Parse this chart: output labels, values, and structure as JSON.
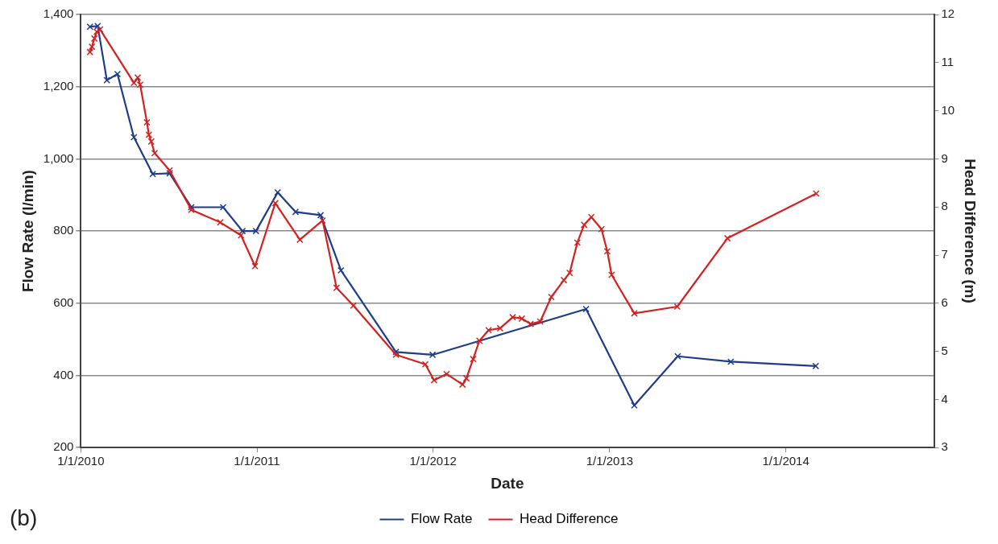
{
  "chart_data": {
    "type": "line",
    "xlabel": "Date",
    "ylabel": "Flow Rate (l/min)",
    "y2label": "Head Difference (m)",
    "annotations": [
      "(b)"
    ],
    "xlim": [
      "2010-01-01",
      "2014-11-04"
    ],
    "xticks": [
      {
        "value": "2010-01-01",
        "label": "1/1/2010"
      },
      {
        "value": "2011-01-01",
        "label": "1/1/2011"
      },
      {
        "value": "2012-01-01",
        "label": "1/1/2012"
      },
      {
        "value": "2013-01-01",
        "label": "1/1/2013"
      },
      {
        "value": "2014-01-01",
        "label": "1/1/2014"
      }
    ],
    "ylim": [
      200,
      1400
    ],
    "yticks": [
      {
        "value": 200,
        "label": "200"
      },
      {
        "value": 400,
        "label": "400"
      },
      {
        "value": 600,
        "label": "600"
      },
      {
        "value": 800,
        "label": "800"
      },
      {
        "value": 1000,
        "label": "1,000"
      },
      {
        "value": 1200,
        "label": "1,200"
      },
      {
        "value": 1400,
        "label": "1,400"
      }
    ],
    "y2lim": [
      3,
      12
    ],
    "y2ticks": [
      3,
      4,
      5,
      6,
      7,
      8,
      9,
      10,
      11,
      12
    ],
    "grid": "y",
    "legend": "bottom",
    "marker": "cross",
    "line_style": "solid",
    "series": [
      {
        "name": "Flow Rate",
        "color": "#1f3c88",
        "x": [
          "2010-01-20",
          "2010-02-05",
          "2010-02-24",
          "2010-03-18",
          "2010-04-21",
          "2010-05-30",
          "2010-07-04",
          "2010-08-18",
          "2010-10-23",
          "2010-12-02",
          "2010-12-30",
          "2011-02-13",
          "2011-03-22",
          "2011-05-13",
          "2011-06-24",
          "2011-10-16",
          "2011-12-31",
          "2012-11-13",
          "2013-02-21",
          "2013-05-22",
          "2013-09-09",
          "2014-03-04"
        ],
        "values": [
          1366,
          1368,
          1218,
          1235,
          1060,
          958,
          960,
          866,
          866,
          800,
          800,
          907,
          853,
          844,
          691,
          465,
          457,
          584,
          317,
          453,
          438,
          426
        ]
      },
      {
        "name": "Head Difference",
        "color": "#d42020",
        "axis": "y2",
        "x": [
          "2010-01-20",
          "2010-01-24",
          "2010-01-29",
          "2010-02-03",
          "2010-02-10",
          "2010-04-21",
          "2010-04-29",
          "2010-05-04",
          "2010-05-18",
          "2010-05-22",
          "2010-05-27",
          "2010-06-03",
          "2010-07-04",
          "2010-08-18",
          "2010-10-17",
          "2010-11-29",
          "2010-12-28",
          "2011-02-08",
          "2011-03-31",
          "2011-05-17",
          "2011-06-15",
          "2011-07-20",
          "2011-10-16",
          "2011-12-16",
          "2012-01-03",
          "2012-01-29",
          "2012-03-02",
          "2012-03-10",
          "2012-03-24",
          "2012-04-06",
          "2012-04-25",
          "2012-05-19",
          "2012-06-14",
          "2012-07-03",
          "2012-07-21",
          "2012-08-10",
          "2012-09-02",
          "2012-09-28",
          "2012-10-10",
          "2012-10-26",
          "2012-11-09",
          "2012-11-24",
          "2012-12-15",
          "2012-12-27",
          "2013-01-05",
          "2013-02-21",
          "2013-05-21",
          "2013-09-02",
          "2014-03-05"
        ],
        "values": [
          11.22,
          11.33,
          11.5,
          11.64,
          11.69,
          10.58,
          10.69,
          10.54,
          9.76,
          9.5,
          9.36,
          9.12,
          8.76,
          7.94,
          7.68,
          7.41,
          6.77,
          8.08,
          7.32,
          7.72,
          6.32,
          5.95,
          4.93,
          4.73,
          4.4,
          4.53,
          4.31,
          4.44,
          4.84,
          5.22,
          5.44,
          5.48,
          5.71,
          5.68,
          5.57,
          5.62,
          6.13,
          6.48,
          6.63,
          7.26,
          7.63,
          7.79,
          7.54,
          7.08,
          6.59,
          5.79,
          5.93,
          7.35,
          8.28
        ]
      }
    ]
  }
}
